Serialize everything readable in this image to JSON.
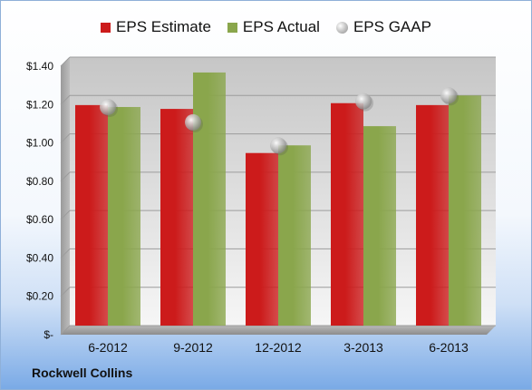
{
  "company_label": "Rockwell Collins",
  "chart_data": {
    "type": "bar",
    "categories": [
      "6-2012",
      "9-2012",
      "12-2012",
      "3-2013",
      "6-2013"
    ],
    "series": [
      {
        "name": "EPS Estimate",
        "type": "bar",
        "color": "#cc1b1b",
        "values": [
          1.15,
          1.13,
          0.9,
          1.16,
          1.15
        ]
      },
      {
        "name": "EPS Actual",
        "type": "bar",
        "color": "#8aa64c",
        "values": [
          1.14,
          1.32,
          0.94,
          1.04,
          1.2
        ]
      },
      {
        "name": "EPS GAAP",
        "type": "marker",
        "color": "#b9b9b9",
        "values": [
          1.14,
          1.06,
          0.94,
          1.17,
          1.2
        ]
      }
    ],
    "ylim": [
      0,
      1.4
    ],
    "yticks": [
      {
        "value": 0.0,
        "label": "$-"
      },
      {
        "value": 0.2,
        "label": "$0.20"
      },
      {
        "value": 0.4,
        "label": "$0.40"
      },
      {
        "value": 0.6,
        "label": "$0.60"
      },
      {
        "value": 0.8,
        "label": "$0.80"
      },
      {
        "value": 1.0,
        "label": "$1.00"
      },
      {
        "value": 1.2,
        "label": "$1.20"
      },
      {
        "value": 1.4,
        "label": "$1.40"
      }
    ],
    "grid": true,
    "legend": "top-center"
  }
}
